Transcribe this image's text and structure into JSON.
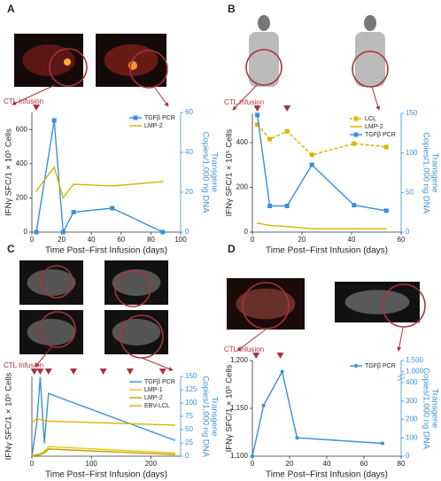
{
  "chart_data": [
    {
      "type": "line",
      "panel": "A",
      "annotation": "CTL Infusion",
      "ylabel": "IFNγ SFC/1 × 10⁵ Cells",
      "y2label": [
        "Transgene",
        "Copies/1,000 ng DNA"
      ],
      "xlabel": "Time Post–First Infusion (days)",
      "x": [
        3,
        15,
        21,
        28,
        54,
        88
      ],
      "xlim": [
        0,
        100
      ],
      "xticks": [
        0,
        20,
        40,
        60,
        80,
        100
      ],
      "ylim": [
        0,
        700
      ],
      "yticks": [
        0,
        200,
        400,
        600
      ],
      "y2lim": [
        0,
        60
      ],
      "y2ticks": [
        0,
        20,
        40,
        60
      ],
      "infusions": [
        3
      ],
      "legend": "top-right",
      "series": [
        {
          "name": "TGFβ PCR",
          "color": "#3b8fd9",
          "axis": "y2",
          "marker": "square",
          "values": [
            0,
            56,
            0,
            10,
            12,
            0
          ]
        },
        {
          "name": "LMP-2",
          "color": "#d8b400",
          "marker": "none",
          "values": [
            240,
            380,
            200,
            280,
            270,
            295
          ]
        }
      ]
    },
    {
      "type": "line",
      "panel": "B",
      "annotation": "CTL Infusion",
      "ylabel": "IFNγ SFC/1 × 10⁵ Cells",
      "y2label": [
        "Transgene",
        "Copies/1,000 ng DNA"
      ],
      "xlabel": "Time Post–First Infusion (days)",
      "x": [
        2,
        7,
        14,
        24,
        41,
        54
      ],
      "xlim": [
        0,
        60
      ],
      "xticks": [
        0,
        20,
        40,
        60
      ],
      "ylim": [
        0,
        530
      ],
      "yticks": [
        0,
        200,
        400
      ],
      "y2lim": [
        0,
        150
      ],
      "y2ticks": [
        0,
        50,
        100,
        150
      ],
      "infusions": [
        2,
        14
      ],
      "legend": "top-right",
      "series": [
        {
          "name": "LCL",
          "color": "#d8b400",
          "dashed": true,
          "marker": "square",
          "values": [
            480,
            415,
            450,
            345,
            395,
            380
          ]
        },
        {
          "name": "LMP-2",
          "color": "#d8b400",
          "marker": "none",
          "values": [
            40,
            30,
            25,
            15,
            15,
            15
          ]
        },
        {
          "name": "TGFβ PCR",
          "color": "#3b8fd9",
          "axis": "y2",
          "marker": "square",
          "values": [
            148,
            33,
            33,
            85,
            34,
            27
          ]
        }
      ]
    },
    {
      "type": "line",
      "panel": "C",
      "annotation": "CTL Infusion",
      "ylabel": "IFNγ SFC/1 × 10⁵ Cells",
      "y2label": [
        "Transgene",
        "Copies/1,000 ng DNA"
      ],
      "xlabel": "Time Post–First Infusion (days)",
      "x": [
        0,
        8,
        14,
        21,
        28,
        240
      ],
      "xlim": [
        0,
        250
      ],
      "xticks": [
        0,
        100,
        200
      ],
      "ylim": [
        0,
        1000
      ],
      "y2lim": [
        0,
        150
      ],
      "y2ticks": [
        0,
        25,
        50,
        75,
        100,
        125,
        150
      ],
      "infusions": [
        4,
        14,
        28,
        70,
        120,
        165,
        220
      ],
      "legend": "top-right",
      "series": [
        {
          "name": "TGFβ PCR",
          "color": "#3b8fd9",
          "axis": "y2",
          "marker": "none",
          "values": [
            0,
            60,
            148,
            25,
            118,
            30
          ]
        },
        {
          "name": "LMP-1",
          "color": "#e8c800",
          "marker": "none",
          "values": [
            10,
            20,
            30,
            60,
            120,
            40
          ]
        },
        {
          "name": "LMP-2",
          "color": "#c2a000",
          "marker": "none",
          "values": [
            5,
            10,
            20,
            40,
            90,
            20
          ]
        },
        {
          "name": "EBV-LCL",
          "color": "#d8b400",
          "marker": "none",
          "values": [
            420,
            470,
            460,
            450,
            440,
            390
          ]
        }
      ]
    },
    {
      "type": "line",
      "panel": "D",
      "annotation": "CTL Infusion",
      "ylabel": "IFNγ SFC/1 × 10⁵ Cells",
      "y2label": [
        "Transgene",
        "Copies/1,000 ng DNA"
      ],
      "xlabel": "Time Post–First Infusion (days)",
      "x": [
        0,
        6,
        16,
        24,
        70
      ],
      "xlim": [
        0,
        80
      ],
      "xticks": [
        0,
        20,
        40,
        60,
        80
      ],
      "ylim": [
        1100,
        1200
      ],
      "yticks": [
        {
          "value": 1100,
          "label": "1,100"
        },
        {
          "value": 1150,
          "label": "1,150"
        },
        {
          "value": 1200,
          "label": "1,200"
        }
      ],
      "y2lim": [
        0,
        1500
      ],
      "y2_broken": true,
      "y2ticks": [
        0,
        100,
        200,
        300,
        400,
        {
          "value": 1000,
          "label": "1,000"
        },
        {
          "value": 1500,
          "label": "1,500"
        }
      ],
      "infusions": [
        2,
        15
      ],
      "legend": "top-right",
      "series": [
        {
          "name": "TGFβ PCR",
          "color": "#3b8fd9",
          "axis": "y2",
          "marker": "circle",
          "values": [
            0,
            275,
            1000,
            100,
            70
          ]
        }
      ]
    }
  ]
}
